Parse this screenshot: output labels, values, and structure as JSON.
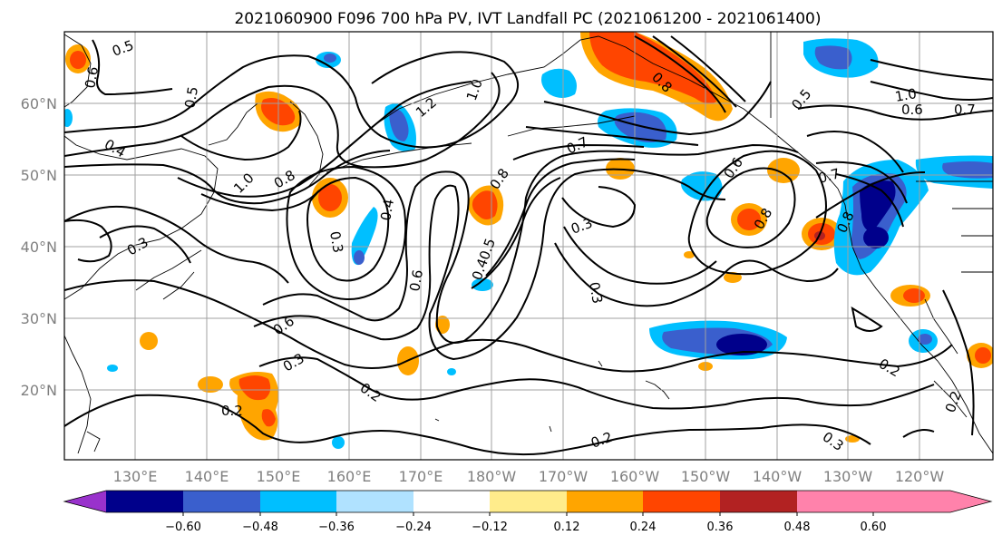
{
  "title": "2021060900 F096 700 hPa PV, IVT Landfall PC (2021061200 - 2021061400)",
  "lat_labels": [
    "60°N",
    "50°N",
    "40°N",
    "30°N",
    "20°N"
  ],
  "lon_labels": [
    "130°E",
    "140°E",
    "150°E",
    "160°E",
    "170°E",
    "180°W",
    "170°W",
    "160°W",
    "150°W",
    "140°W",
    "130°W",
    "120°W"
  ],
  "colorbar": {
    "tick_labels": [
      "−0.60",
      "−0.48",
      "−0.36",
      "−0.24",
      "−0.12",
      "0.12",
      "0.24",
      "0.36",
      "0.48",
      "0.60"
    ],
    "colors": [
      "#9932cc",
      "#00008b",
      "#3a5fcd",
      "#00bfff",
      "#b0e2ff",
      "#ffffff",
      "#ffec8b",
      "#ffa500",
      "#ff4500",
      "#b22222",
      "#ff82ab"
    ]
  },
  "contour_labels": {
    "c1": "0.5",
    "c2": "0.6",
    "c3": "0.5",
    "c4": "0.4",
    "c5": "1.0",
    "c6": "0.8",
    "c7": "0.3",
    "c8": "1.2",
    "c9": "1.0",
    "c10": "0.7",
    "c11": "0.8",
    "c12": "0.4",
    "c13": "0.3",
    "c14": "0.6",
    "c15": "0.40.5",
    "c16": "0.3",
    "c17": "0.3",
    "c18": "0.6",
    "c19": "0.8",
    "c20": "0.7",
    "c21": "0.8",
    "c22": "0.6",
    "c23": "0.3",
    "c24": "0.2",
    "c25": "0.2",
    "c26": "0.2",
    "c27": "0.3",
    "c28": "0.2",
    "c29": "0.2",
    "c30": "1.0",
    "c31": "0.8",
    "c32": "0.5",
    "c33": "0.6",
    "c34": "0.7"
  }
}
